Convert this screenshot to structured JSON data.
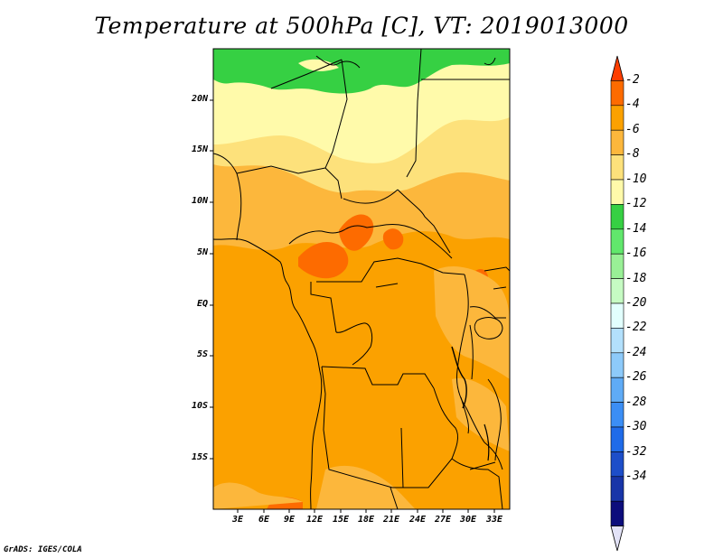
{
  "title": "Temperature at 500hPa [C], VT: 2019013000",
  "credit": "GrADS: IGES/COLA",
  "map": {
    "lat_labels": [
      "20N",
      "15N",
      "10N",
      "5N",
      "EQ",
      "5S",
      "10S",
      "15S"
    ],
    "lon_labels": [
      "3E",
      "6E",
      "9E",
      "12E",
      "15E",
      "18E",
      "21E",
      "24E",
      "27E",
      "30E",
      "33E"
    ],
    "field_colors": {
      "neg12_10": "#fffaaa",
      "neg10_8": "#fde17b",
      "neg8_6": "#fcb73c",
      "neg6_4": "#fba100",
      "neg4_2": "#fd6b00",
      "neg14_12": "#36d043"
    }
  },
  "colorbar": {
    "labels": [
      "-2",
      "-4",
      "-6",
      "-8",
      "-10",
      "-12",
      "-14",
      "-16",
      "-18",
      "-20",
      "-22",
      "-24",
      "-26",
      "-28",
      "-30",
      "-32",
      "-34"
    ],
    "colors": [
      "#fe3e00",
      "#fd6b00",
      "#fba100",
      "#fcb73c",
      "#fde17b",
      "#fffaaa",
      "#36d043",
      "#61e76c",
      "#99f096",
      "#c6fbc3",
      "#e2fffd",
      "#b3e0fc",
      "#8dcafa",
      "#5fabf6",
      "#3b8ef5",
      "#1f6be9",
      "#1d4ec9",
      "#1835a8",
      "#0c0d7c",
      "#e2e2f7"
    ]
  }
}
